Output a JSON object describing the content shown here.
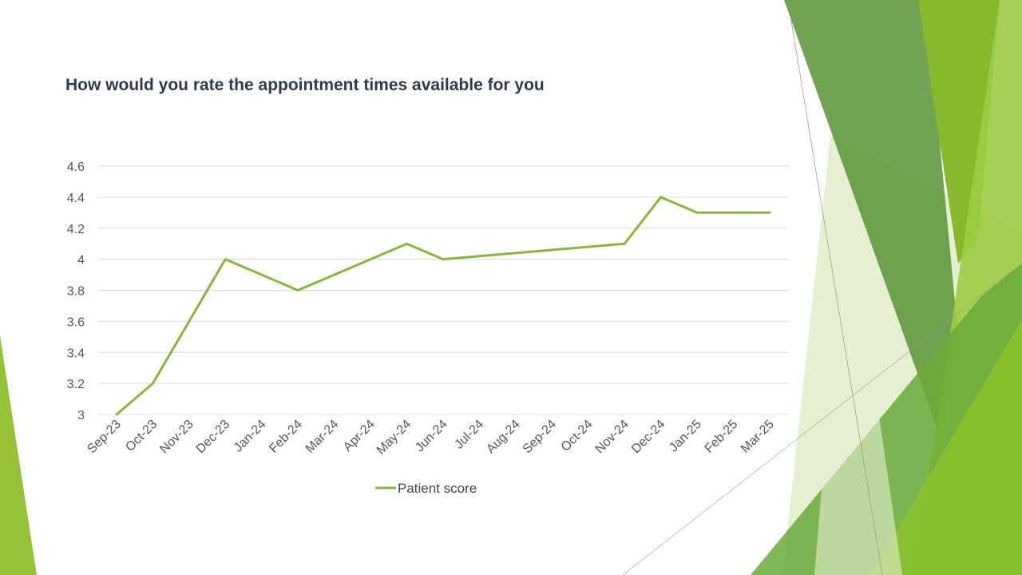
{
  "slide": {
    "colors": {
      "accent": "#8ab53a",
      "dark_green": "#4a8a2a",
      "light_green": "#c8e09a",
      "mid_green": "#6aaa3a",
      "bright_green": "#96c23a"
    }
  },
  "chart_data": {
    "type": "line",
    "title": "How would you rate the appointment times available for you",
    "categories": [
      "Sep-23",
      "Oct-23",
      "Nov-23",
      "Dec-23",
      "Jan-24",
      "Feb-24",
      "Mar-24",
      "Apr-24",
      "May-24",
      "Jun-24",
      "Jul-24",
      "Aug-24",
      "Sep-24",
      "Oct-24",
      "Nov-24",
      "Dec-24",
      "Jan-25",
      "Feb-25",
      "Mar-25"
    ],
    "ylim": [
      3,
      4.6
    ],
    "yticks": [
      "3",
      "3.2",
      "3.4",
      "3.6",
      "3.8",
      "4",
      "4.2",
      "4.4",
      "4.6"
    ],
    "series": [
      {
        "name": "Patient score",
        "color": "#8ab53a",
        "points": [
          {
            "x": "Sep-23",
            "y": 3.0
          },
          {
            "x": "Oct-23",
            "y": 3.2
          },
          {
            "x": "Dec-23",
            "y": 4.0
          },
          {
            "x": "Feb-24",
            "y": 3.8
          },
          {
            "x": "May-24",
            "y": 4.1
          },
          {
            "x": "Jun-24",
            "y": 4.0
          },
          {
            "x": "Nov-24",
            "y": 4.1
          },
          {
            "x": "Dec-24",
            "y": 4.4
          },
          {
            "x": "Jan-25",
            "y": 4.3
          },
          {
            "x": "Mar-25",
            "y": 4.3
          }
        ]
      }
    ],
    "grid": true,
    "legend_position": "bottom"
  }
}
